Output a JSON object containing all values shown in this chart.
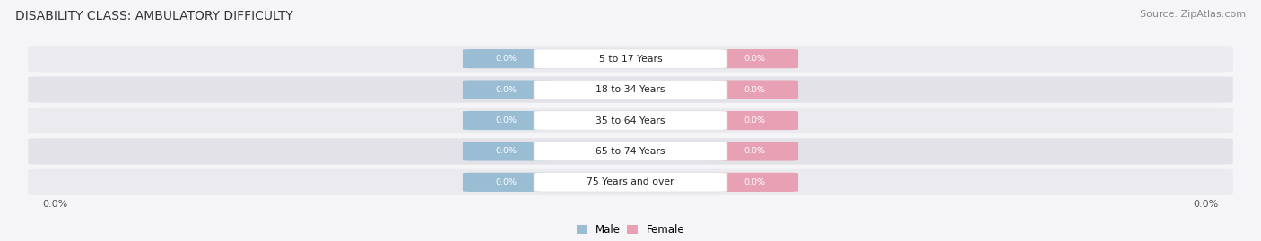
{
  "title": "DISABILITY CLASS: AMBULATORY DIFFICULTY",
  "source": "Source: ZipAtlas.com",
  "categories": [
    "5 to 17 Years",
    "18 to 34 Years",
    "35 to 64 Years",
    "65 to 74 Years",
    "75 Years and over"
  ],
  "male_values": [
    0.0,
    0.0,
    0.0,
    0.0,
    0.0
  ],
  "female_values": [
    0.0,
    0.0,
    0.0,
    0.0,
    0.0
  ],
  "male_color": "#9bbdd4",
  "female_color": "#e8a0b4",
  "male_label": "Male",
  "female_label": "Female",
  "title_fontsize": 10,
  "source_fontsize": 8,
  "x_left_label": "0.0%",
  "x_right_label": "0.0%",
  "fig_bg_color": "#f5f5f8",
  "row_bg_color": "#eaeaf0",
  "row_inner_color": "#f2f2f6",
  "center_label_color": "#222222",
  "value_text_color": "#ffffff"
}
